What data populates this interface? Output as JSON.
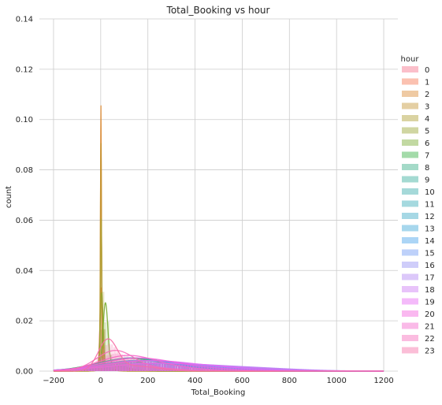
{
  "chart_data": {
    "type": "line",
    "title": "Total_Booking vs hour",
    "xlabel": "Total_Booking",
    "ylabel": "count",
    "xlim": [
      -260,
      1260
    ],
    "ylim": [
      0,
      0.14
    ],
    "xticks": [
      -200,
      0,
      200,
      400,
      600,
      800,
      1000,
      1200
    ],
    "yticks": [
      0.0,
      0.02,
      0.04,
      0.06,
      0.08,
      0.1,
      0.12,
      0.14
    ],
    "ytick_labels": [
      "0.00",
      "0.02",
      "0.04",
      "0.06",
      "0.08",
      "0.10",
      "0.12",
      "0.14"
    ],
    "grid": true,
    "legend_title": "hour",
    "legend_position": "right",
    "series": [
      {
        "name": "0",
        "color": "#f77189",
        "peak": 3,
        "height": 0.03,
        "width": 6,
        "tail": 0.002,
        "tail_peak": 60,
        "tail_width": 60
      },
      {
        "name": "1",
        "color": "#f7754f",
        "peak": 2,
        "height": 0.032,
        "width": 5,
        "tail": 0.002,
        "tail_peak": 50,
        "tail_width": 50
      },
      {
        "name": "2",
        "color": "#dc8932",
        "peak": 1,
        "height": 0.105,
        "width": 2,
        "tail": 0.001,
        "tail_peak": 30,
        "tail_width": 30
      },
      {
        "name": "3",
        "color": "#c39532",
        "peak": 1,
        "height": 0.09,
        "width": 2.5,
        "tail": 0.001,
        "tail_peak": 25,
        "tail_width": 25
      },
      {
        "name": "4",
        "color": "#ae9d31",
        "peak": 2,
        "height": 0.06,
        "width": 3,
        "tail": 0.001,
        "tail_peak": 30,
        "tail_width": 30
      },
      {
        "name": "5",
        "color": "#97a431",
        "peak": 4,
        "height": 0.03,
        "width": 6,
        "tail": 0.002,
        "tail_peak": 60,
        "tail_width": 60
      },
      {
        "name": "6",
        "color": "#77ab31",
        "peak": 20,
        "height": 0.025,
        "width": 10,
        "tail": 0.004,
        "tail_peak": 120,
        "tail_width": 90
      },
      {
        "name": "7",
        "color": "#33b040",
        "peak": 120,
        "height": 0.005,
        "width": 140,
        "tail": 0.001,
        "tail_peak": 500,
        "tail_width": 150
      },
      {
        "name": "8",
        "color": "#35ae85",
        "peak": 200,
        "height": 0.004,
        "width": 180,
        "tail": 0.001,
        "tail_peak": 600,
        "tail_width": 180
      },
      {
        "name": "9",
        "color": "#36ad9c",
        "peak": 150,
        "height": 0.004,
        "width": 160,
        "tail": 0.001,
        "tail_peak": 400,
        "tail_width": 150
      },
      {
        "name": "10",
        "color": "#37abaa",
        "peak": 120,
        "height": 0.005,
        "width": 130,
        "tail": 0.001,
        "tail_peak": 350,
        "tail_width": 140
      },
      {
        "name": "11",
        "color": "#38aab8",
        "peak": 130,
        "height": 0.005,
        "width": 140,
        "tail": 0.001,
        "tail_peak": 380,
        "tail_width": 140
      },
      {
        "name": "12",
        "color": "#3aa8c6",
        "peak": 150,
        "height": 0.004,
        "width": 150,
        "tail": 0.001,
        "tail_peak": 420,
        "tail_width": 150
      },
      {
        "name": "13",
        "color": "#3ca6d7",
        "peak": 160,
        "height": 0.004,
        "width": 160,
        "tail": 0.001,
        "tail_peak": 450,
        "tail_width": 150
      },
      {
        "name": "14",
        "color": "#46a2ec",
        "peak": 170,
        "height": 0.004,
        "width": 170,
        "tail": 0.001,
        "tail_peak": 480,
        "tail_width": 160
      },
      {
        "name": "15",
        "color": "#6e9af4",
        "peak": 180,
        "height": 0.004,
        "width": 180,
        "tail": 0.001,
        "tail_peak": 520,
        "tail_width": 170
      },
      {
        "name": "16",
        "color": "#9491f4",
        "peak": 220,
        "height": 0.003,
        "width": 200,
        "tail": 0.001,
        "tail_peak": 600,
        "tail_width": 180
      },
      {
        "name": "17",
        "color": "#b186f4",
        "peak": 250,
        "height": 0.003,
        "width": 220,
        "tail": 0.001,
        "tail_peak": 650,
        "tail_width": 190
      },
      {
        "name": "18",
        "color": "#cc79f4",
        "peak": 240,
        "height": 0.003,
        "width": 210,
        "tail": 0.001,
        "tail_peak": 620,
        "tail_width": 190
      },
      {
        "name": "19",
        "color": "#e767f4",
        "peak": 200,
        "height": 0.004,
        "width": 180,
        "tail": 0.001,
        "tail_peak": 520,
        "tail_width": 170
      },
      {
        "name": "20",
        "color": "#f461dd",
        "peak": 150,
        "height": 0.005,
        "width": 150,
        "tail": 0.001,
        "tail_peak": 420,
        "tail_width": 150
      },
      {
        "name": "21",
        "color": "#f565cc",
        "peak": 110,
        "height": 0.006,
        "width": 120,
        "tail": 0.001,
        "tail_peak": 330,
        "tail_width": 130
      },
      {
        "name": "22",
        "color": "#f66bbb",
        "peak": 60,
        "height": 0.008,
        "width": 80,
        "tail": 0.001,
        "tail_peak": 250,
        "tail_width": 110
      },
      {
        "name": "23",
        "color": "#f66ea6",
        "peak": 30,
        "height": 0.012,
        "width": 40,
        "tail": 0.002,
        "tail_peak": 150,
        "tail_width": 90
      }
    ]
  }
}
